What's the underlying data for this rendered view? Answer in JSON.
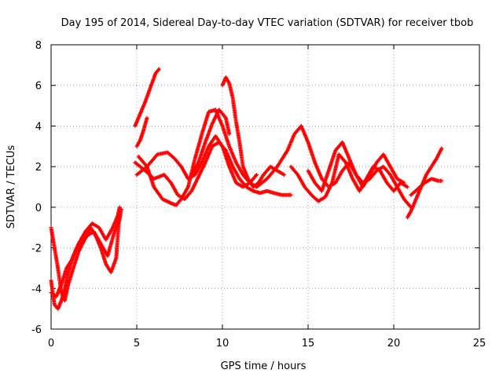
{
  "chart_data": {
    "type": "scatter",
    "title": "Day 195 of 2014, Sidereal Day-to-day VTEC variation (SDTVAR) for receiver tbob",
    "xlabel": "GPS time / hours",
    "ylabel": "SDTVAR / TECUs",
    "xlim": [
      0,
      25
    ],
    "ylim": [
      -6,
      8
    ],
    "xticks": [
      "0",
      "5",
      "10",
      "15",
      "20",
      "25"
    ],
    "yticks": [
      "-6",
      "-4",
      "-2",
      "0",
      "2",
      "4",
      "6",
      "8"
    ],
    "grid": true,
    "marker": "+",
    "color": "#ff0000",
    "series": [
      {
        "name": "arc-early-a",
        "x": [
          0.0,
          0.2,
          0.4,
          0.6,
          0.8,
          1.0,
          1.3,
          1.6,
          2.0,
          2.3,
          2.6,
          2.9,
          3.2,
          3.5,
          3.8,
          4.0
        ],
        "y": [
          -1.0,
          -2.0,
          -3.0,
          -4.2,
          -4.6,
          -3.8,
          -3.0,
          -2.2,
          -1.5,
          -1.0,
          -1.4,
          -2.0,
          -2.8,
          -3.2,
          -2.5,
          -0.2
        ]
      },
      {
        "name": "arc-early-b",
        "x": [
          0.0,
          0.2,
          0.4,
          0.6,
          0.8,
          1.0,
          1.3,
          1.6,
          2.0,
          2.4,
          2.8,
          3.2,
          3.6,
          3.9,
          4.0
        ],
        "y": [
          -3.6,
          -4.8,
          -5.0,
          -4.6,
          -4.0,
          -3.2,
          -2.4,
          -1.8,
          -1.2,
          -0.8,
          -1.0,
          -1.6,
          -1.0,
          -0.4,
          0.0
        ]
      },
      {
        "name": "arc-early-c",
        "x": [
          0.0,
          0.3,
          0.6,
          0.9,
          1.2,
          1.5,
          1.8,
          2.1,
          2.5,
          2.9,
          3.3,
          3.7,
          4.0,
          4.1
        ],
        "y": [
          -4.2,
          -4.4,
          -3.8,
          -3.0,
          -2.6,
          -2.0,
          -1.8,
          -1.4,
          -1.2,
          -1.8,
          -2.4,
          -1.2,
          -0.6,
          -0.1
        ]
      },
      {
        "name": "arc-high",
        "x": [
          4.9,
          5.2,
          5.5,
          5.8,
          6.1,
          6.3
        ],
        "y": [
          4.0,
          4.6,
          5.2,
          5.9,
          6.6,
          6.8
        ]
      },
      {
        "name": "arc-high-b",
        "x": [
          5.0,
          5.2,
          5.4,
          5.6
        ],
        "y": [
          3.0,
          3.3,
          3.8,
          4.4
        ]
      },
      {
        "name": "arc-mid-a",
        "x": [
          4.9,
          5.5,
          6.0,
          6.6,
          7.0,
          7.4,
          7.8,
          8.2,
          8.6,
          9.0,
          9.4,
          9.8,
          10.2,
          10.6,
          11.0,
          11.4,
          11.8,
          12.2,
          12.6,
          13.0,
          13.5,
          14.0
        ],
        "y": [
          2.2,
          1.8,
          1.4,
          1.6,
          1.2,
          0.6,
          0.4,
          0.8,
          1.5,
          2.2,
          3.0,
          3.2,
          2.8,
          2.0,
          1.4,
          1.0,
          0.8,
          0.7,
          0.8,
          0.7,
          0.6,
          0.6
        ]
      },
      {
        "name": "arc-mid-b",
        "x": [
          5.0,
          5.6,
          6.2,
          6.8,
          7.2,
          7.6,
          8.0,
          8.4,
          8.8,
          9.2,
          9.6,
          10.0,
          10.4,
          10.8,
          11.2,
          11.6,
          12.0
        ],
        "y": [
          1.6,
          2.0,
          2.6,
          2.7,
          2.4,
          2.0,
          1.4,
          1.6,
          2.2,
          3.0,
          3.5,
          3.0,
          2.0,
          1.2,
          1.0,
          1.2,
          1.6
        ]
      },
      {
        "name": "arc-mid-c",
        "x": [
          5.1,
          5.6,
          6.0,
          6.5,
          7.0,
          7.3,
          7.6,
          8.0,
          8.4,
          8.8,
          9.2,
          9.6,
          10.0,
          10.4,
          10.8,
          11.2,
          11.6,
          12.0
        ],
        "y": [
          2.5,
          2.0,
          1.0,
          0.4,
          0.2,
          0.1,
          0.4,
          1.0,
          2.4,
          3.6,
          4.7,
          4.8,
          4.0,
          3.0,
          2.2,
          1.6,
          1.2,
          1.0
        ]
      },
      {
        "name": "arc-mid-d",
        "x": [
          8.2,
          8.6,
          9.0,
          9.4,
          9.8,
          10.2,
          10.4
        ],
        "y": [
          1.6,
          2.2,
          3.2,
          4.1,
          4.8,
          4.4,
          3.6
        ]
      },
      {
        "name": "arc-peak10",
        "x": [
          10.0,
          10.2,
          10.4,
          10.6,
          10.8,
          11.0,
          11.2,
          11.5,
          11.8,
          12.1,
          12.4,
          12.8,
          13.2,
          13.6
        ],
        "y": [
          6.0,
          6.4,
          6.1,
          5.4,
          4.2,
          3.2,
          2.0,
          1.4,
          1.0,
          1.2,
          1.6,
          2.0,
          1.8,
          1.6
        ]
      },
      {
        "name": "arc-late-a",
        "x": [
          12.0,
          12.6,
          13.2,
          13.8,
          14.2,
          14.6,
          15.0,
          15.4,
          15.8,
          16.2,
          16.6,
          17.0,
          17.4,
          17.8,
          18.2,
          18.6,
          19.0,
          19.4,
          19.8,
          20.2,
          20.6,
          21.0
        ],
        "y": [
          1.0,
          1.4,
          2.0,
          2.8,
          3.6,
          4.0,
          3.2,
          2.2,
          1.4,
          1.0,
          1.2,
          1.8,
          2.2,
          1.6,
          1.2,
          1.4,
          1.8,
          2.0,
          1.6,
          1.0,
          0.4,
          0.0
        ]
      },
      {
        "name": "arc-late-b",
        "x": [
          14.0,
          14.4,
          14.8,
          15.2,
          15.6,
          16.0,
          16.4,
          16.8,
          17.2,
          17.6,
          18.0,
          18.4,
          18.8,
          19.2,
          19.6,
          20.0,
          20.4,
          20.8
        ],
        "y": [
          2.0,
          1.6,
          1.0,
          0.6,
          0.3,
          0.5,
          1.2,
          2.6,
          2.2,
          1.4,
          0.8,
          1.4,
          2.0,
          1.8,
          1.2,
          0.8,
          1.2,
          1.0
        ]
      },
      {
        "name": "arc-late-c",
        "x": [
          15.0,
          15.4,
          15.8,
          16.2,
          16.6,
          17.0,
          17.4,
          17.8,
          18.2,
          18.6,
          19.0,
          19.4,
          19.8,
          20.2,
          20.6
        ],
        "y": [
          1.8,
          1.2,
          0.8,
          1.8,
          2.8,
          3.2,
          2.4,
          1.6,
          1.0,
          1.6,
          2.2,
          2.6,
          2.0,
          1.4,
          1.2
        ]
      },
      {
        "name": "arc-end",
        "x": [
          20.8,
          21.0,
          21.3,
          21.6,
          21.9,
          22.2,
          22.5,
          22.8
        ],
        "y": [
          -0.5,
          -0.2,
          0.4,
          1.0,
          1.6,
          2.0,
          2.4,
          2.9
        ]
      },
      {
        "name": "arc-end-b",
        "x": [
          21.0,
          21.4,
          21.8,
          22.2,
          22.6,
          22.8
        ],
        "y": [
          0.6,
          0.9,
          1.2,
          1.4,
          1.3,
          1.3
        ]
      }
    ]
  }
}
